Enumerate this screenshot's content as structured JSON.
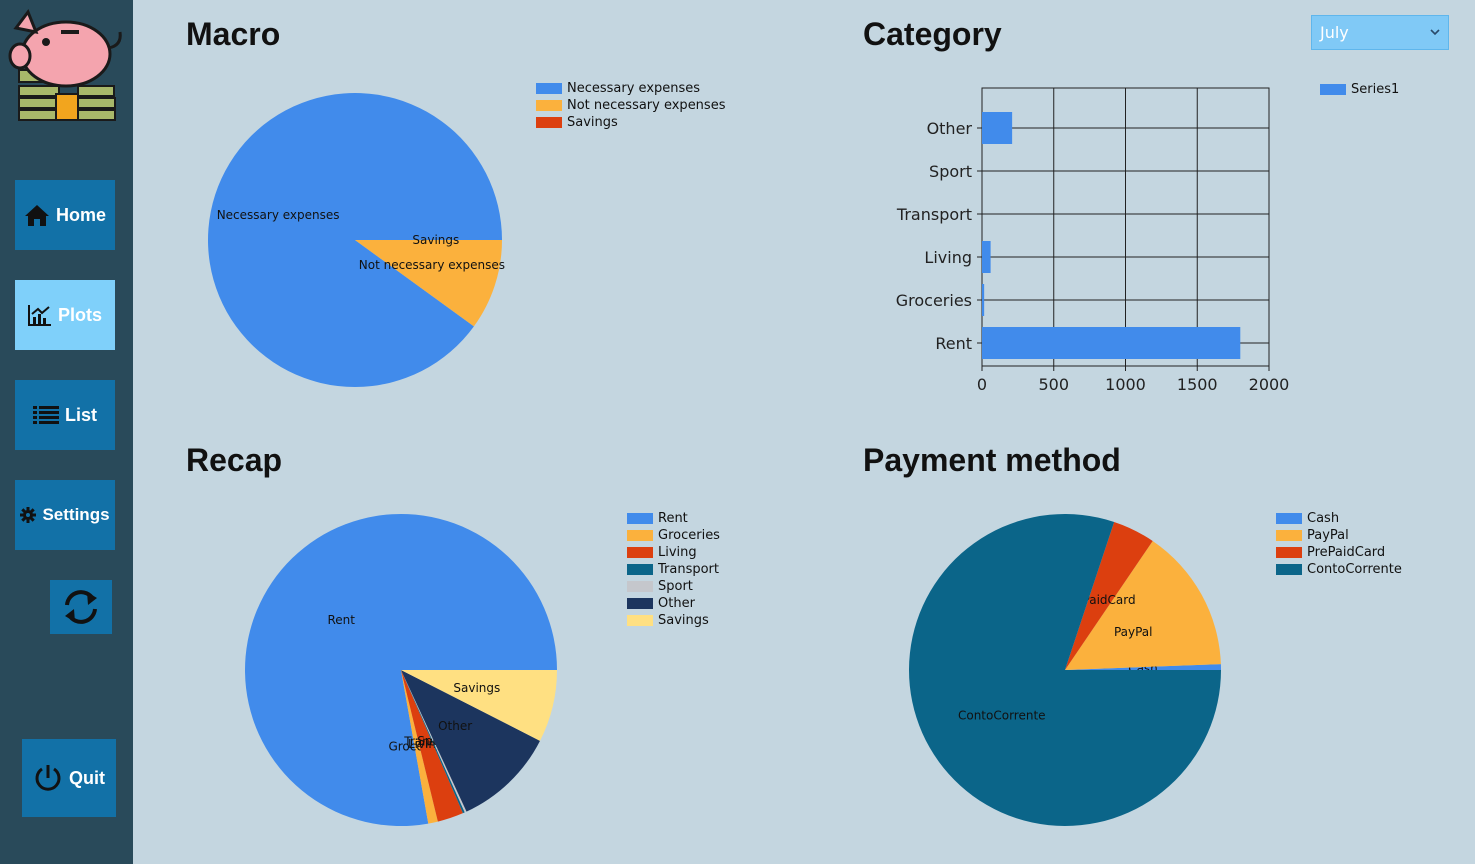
{
  "sidebar": {
    "home_label": "Home",
    "plots_label": "Plots",
    "list_label": "List",
    "settings_label": "Settings",
    "quit_label": "Quit",
    "icons": {
      "home": "home-icon",
      "plots": "chart-icon",
      "list": "list-icon",
      "settings": "gear-icon",
      "refresh": "refresh-icon",
      "quit": "power-icon",
      "logo": "piggy-bank-icon"
    },
    "colors": {
      "background": "#294a5a",
      "button": "#1271a7",
      "active_button": "#7fd0fa"
    }
  },
  "panels": {
    "macro_title": "Macro",
    "category_title": "Category",
    "recap_title": "Recap",
    "payment_title": "Payment method"
  },
  "month_select": {
    "selected": "July"
  },
  "chart_data": [
    {
      "type": "pie",
      "title": "Macro",
      "labels": [
        "Necessary expenses",
        "Not necessary expenses",
        "Savings"
      ],
      "values": [
        90,
        10,
        0
      ],
      "colors": [
        "#418beb",
        "#fbb13d",
        "#dc3f0f"
      ],
      "legend_position": "right"
    },
    {
      "type": "bar",
      "orientation": "horizontal",
      "title": "Category",
      "categories": [
        "Other",
        "Sport",
        "Transport",
        "Living",
        "Groceries",
        "Rent"
      ],
      "series": [
        {
          "name": "Series1",
          "values": [
            210,
            0,
            0,
            60,
            15,
            1800
          ]
        }
      ],
      "xlim": [
        0,
        2000
      ],
      "xticks": [
        "0",
        "500",
        "1000",
        "1500",
        "2000"
      ],
      "grid": true,
      "colors": [
        "#418beb"
      ],
      "legend_position": "top-right"
    },
    {
      "type": "pie",
      "title": "Recap",
      "labels": [
        "Rent",
        "Groceries",
        "Living",
        "Transport",
        "Sport",
        "Other",
        "Savings"
      ],
      "values": [
        77.8,
        1.0,
        2.7,
        0.2,
        0.2,
        10.6,
        7.5
      ],
      "colors": [
        "#418beb",
        "#fbb13d",
        "#dc3f0f",
        "#0b6589",
        "#c5c7cc",
        "#1c355e",
        "#ffe082"
      ],
      "legend_position": "right"
    },
    {
      "type": "pie",
      "title": "Payment method",
      "labels": [
        "Cash",
        "PayPal",
        "PrePaidCard",
        "ContoCorrente"
      ],
      "values": [
        0.6,
        14.9,
        4.4,
        80.1
      ],
      "colors": [
        "#418beb",
        "#fbb13d",
        "#dc3f0f",
        "#0b6589"
      ],
      "legend_position": "right"
    }
  ]
}
